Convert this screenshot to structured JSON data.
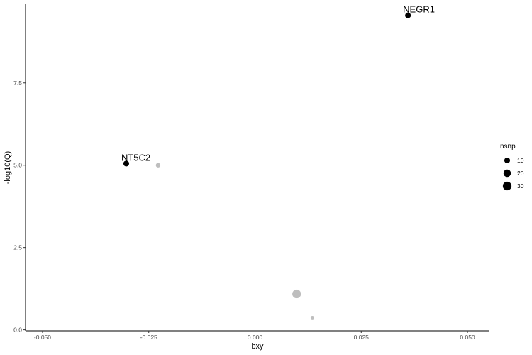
{
  "chart_data": {
    "type": "scatter",
    "xlabel": "bxy",
    "ylabel": "-log10(Q)",
    "xlim": [
      -0.054,
      0.055
    ],
    "ylim": [
      -0.03,
      9.91
    ],
    "x_ticks": [
      -0.05,
      -0.025,
      0.0,
      0.025,
      0.05
    ],
    "x_tick_labels": [
      "-0.050",
      "-0.025",
      "0.000",
      "0.025",
      "0.050"
    ],
    "y_ticks": [
      0.0,
      2.5,
      5.0,
      7.5
    ],
    "y_tick_labels": [
      "0.0",
      "2.5",
      "5.0",
      "7.5"
    ],
    "grid": false,
    "legend": {
      "title": "nsnp",
      "position": "right",
      "entries": [
        {
          "label": "10",
          "nsnp": 10
        },
        {
          "label": "20",
          "nsnp": 20
        },
        {
          "label": "30",
          "nsnp": 30
        }
      ]
    },
    "points": [
      {
        "x": 0.036,
        "y": 9.55,
        "nsnp": 10,
        "color": "#000000",
        "label": "NEGR1"
      },
      {
        "x": -0.0303,
        "y": 5.05,
        "nsnp": 10,
        "color": "#000000",
        "label": "NT5C2"
      },
      {
        "x": -0.0228,
        "y": 5.0,
        "nsnp": 5,
        "color": "#bebebe",
        "label": ""
      },
      {
        "x": 0.0098,
        "y": 1.09,
        "nsnp": 30,
        "color": "#bebebe",
        "label": ""
      },
      {
        "x": 0.0135,
        "y": 0.37,
        "nsnp": 2,
        "color": "#bebebe",
        "label": ""
      }
    ]
  }
}
